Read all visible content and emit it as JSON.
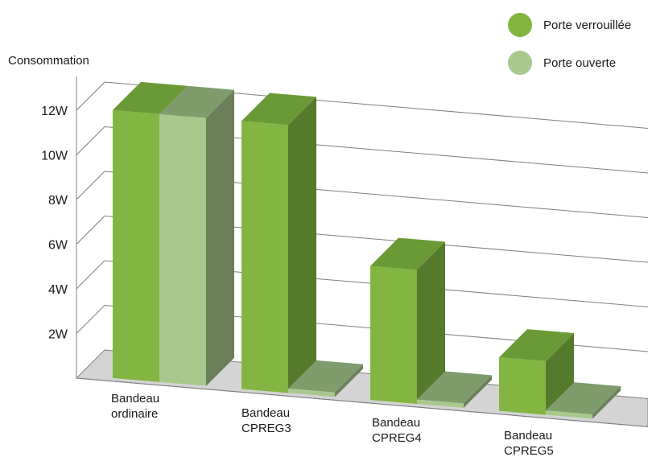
{
  "chart_data": {
    "type": "bar",
    "title": "",
    "ylabel": "Consommation",
    "xlabel": "",
    "ylim": [
      0,
      12
    ],
    "y_ticks": [
      "2W",
      "4W",
      "6W",
      "8W",
      "10W",
      "12W"
    ],
    "y_tick_values": [
      2,
      4,
      6,
      8,
      10,
      12
    ],
    "grid": true,
    "legend_position": "top-right",
    "categories": [
      [
        "Bandeau",
        "ordinaire"
      ],
      [
        "Bandeau",
        "CPREG3"
      ],
      [
        "Bandeau",
        "CPREG4"
      ],
      [
        "Bandeau",
        "CPREG5"
      ]
    ],
    "series": [
      {
        "name": "Porte verrouillée",
        "values": [
          12,
          12,
          6,
          2.4
        ]
      },
      {
        "name": "Porte ouverte",
        "values": [
          12,
          0.2,
          0.2,
          0.2
        ]
      }
    ],
    "colors": {
      "verrouillee": {
        "front": "#82b541",
        "top": "#6a9a35",
        "side": "#547a2c"
      },
      "ouverte": {
        "front": "#a8c98e",
        "top": "#7e9c6c",
        "side": "#6b7f5a"
      },
      "floor": "#d4d4d4",
      "grid": "#7f7f7f"
    }
  }
}
